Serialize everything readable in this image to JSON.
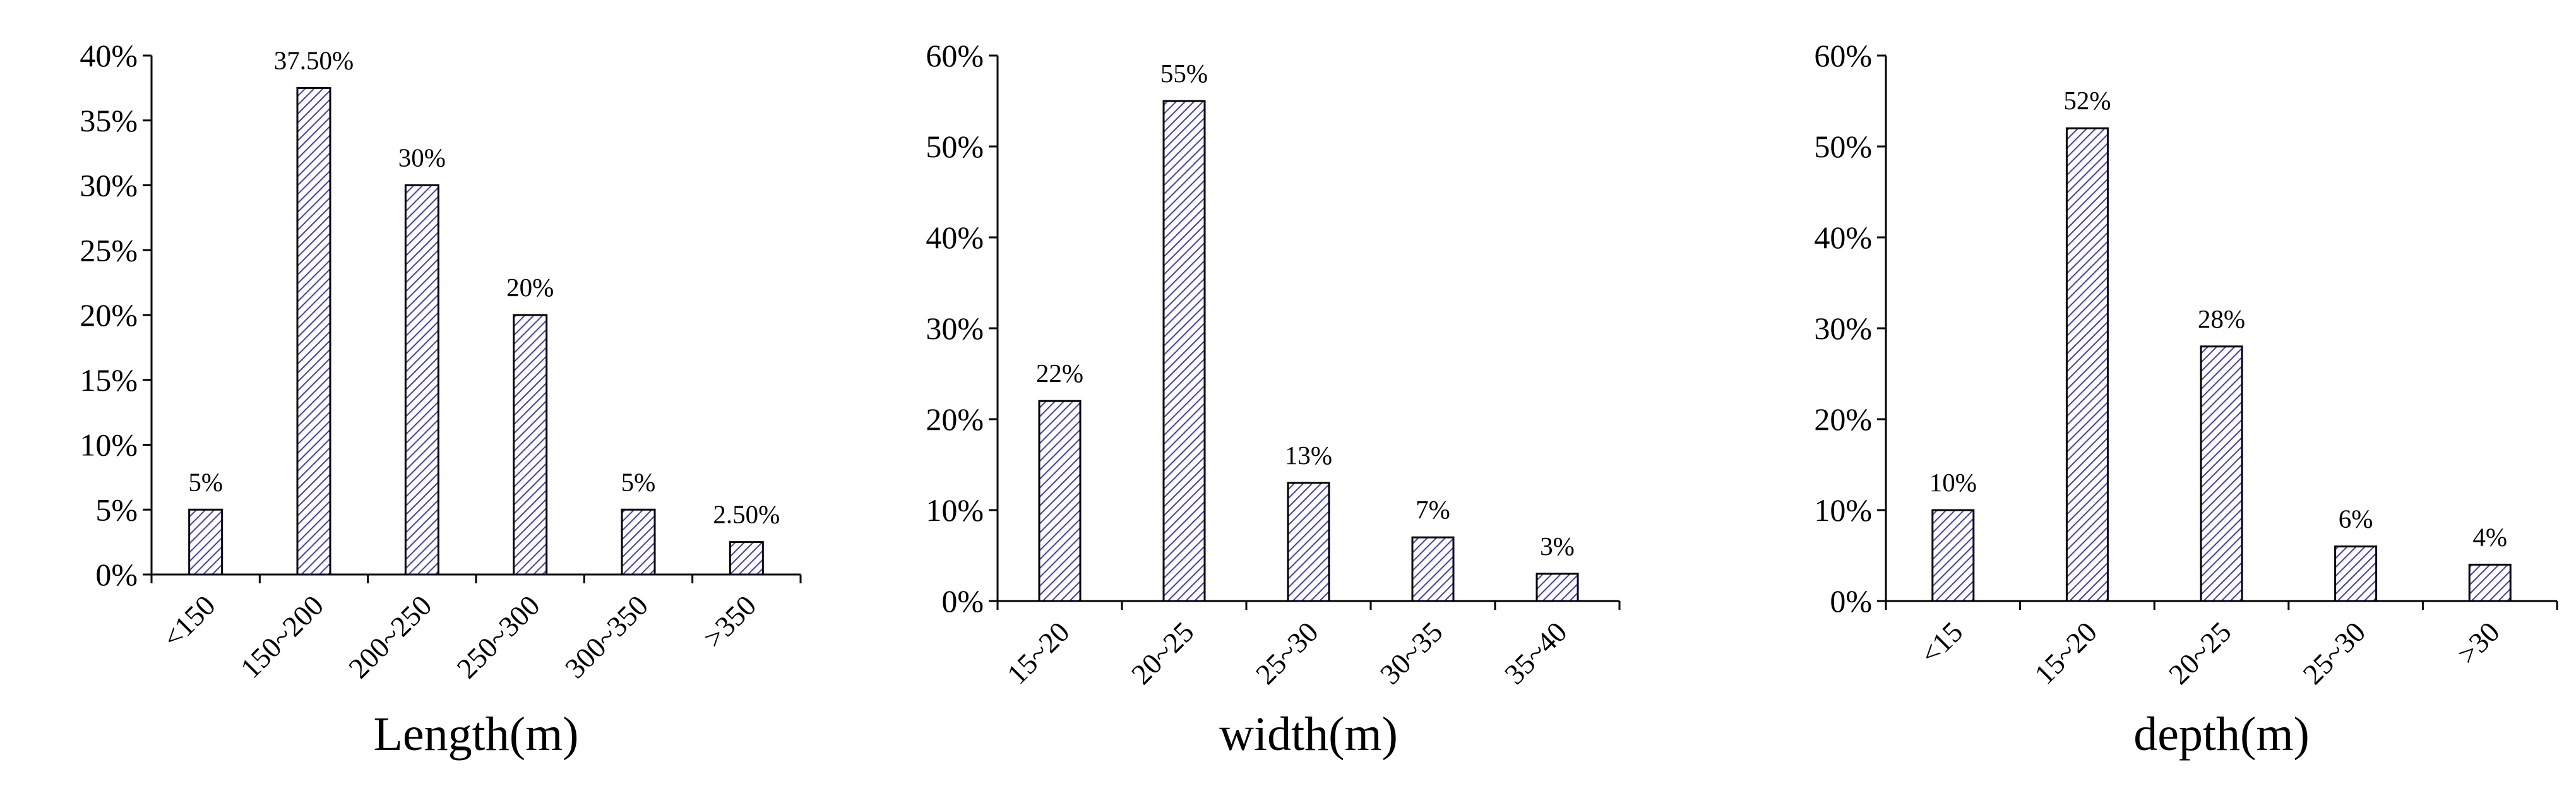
{
  "chart_data": [
    {
      "type": "bar",
      "categories": [
        "<150",
        "150~200",
        "200~250",
        "250~300",
        "300~350",
        ">350"
      ],
      "values": [
        5,
        37.5,
        30,
        20,
        5,
        2.5
      ],
      "data_labels": [
        "5%",
        "37.50%",
        "30%",
        "20%",
        "5%",
        "2.50%"
      ],
      "xlabel": "Length(m)",
      "ylabel": "",
      "ylim": [
        0,
        40
      ],
      "yticks": [
        "0%",
        "5%",
        "10%",
        "15%",
        "20%",
        "25%",
        "30%",
        "35%",
        "40%"
      ],
      "grid": false,
      "bar_fill": "hatched-blue"
    },
    {
      "type": "bar",
      "categories": [
        "15~20",
        "20~25",
        "25~30",
        "30~35",
        "35~40"
      ],
      "values": [
        22,
        55,
        13,
        7,
        3
      ],
      "data_labels": [
        "22%",
        "55%",
        "13%",
        "7%",
        "3%"
      ],
      "xlabel": "width(m)",
      "ylabel": "",
      "ylim": [
        0,
        60
      ],
      "yticks": [
        "0%",
        "10%",
        "20%",
        "30%",
        "40%",
        "50%",
        "60%"
      ],
      "grid": false,
      "bar_fill": "hatched-blue"
    },
    {
      "type": "bar",
      "categories": [
        "<15",
        "15~20",
        "20~25",
        "25~30",
        ">30"
      ],
      "values": [
        10,
        52,
        28,
        6,
        4
      ],
      "data_labels": [
        "10%",
        "52%",
        "28%",
        "6%",
        "4%"
      ],
      "xlabel": "depth(m)",
      "ylabel": "",
      "ylim": [
        0,
        60
      ],
      "yticks": [
        "0%",
        "10%",
        "20%",
        "30%",
        "40%",
        "50%",
        "60%"
      ],
      "grid": false,
      "bar_fill": "hatched-blue"
    }
  ],
  "colors": {
    "bar_hatch": "#3b3bd6",
    "bar_fill": "#ffffff",
    "axis": "#000000"
  }
}
